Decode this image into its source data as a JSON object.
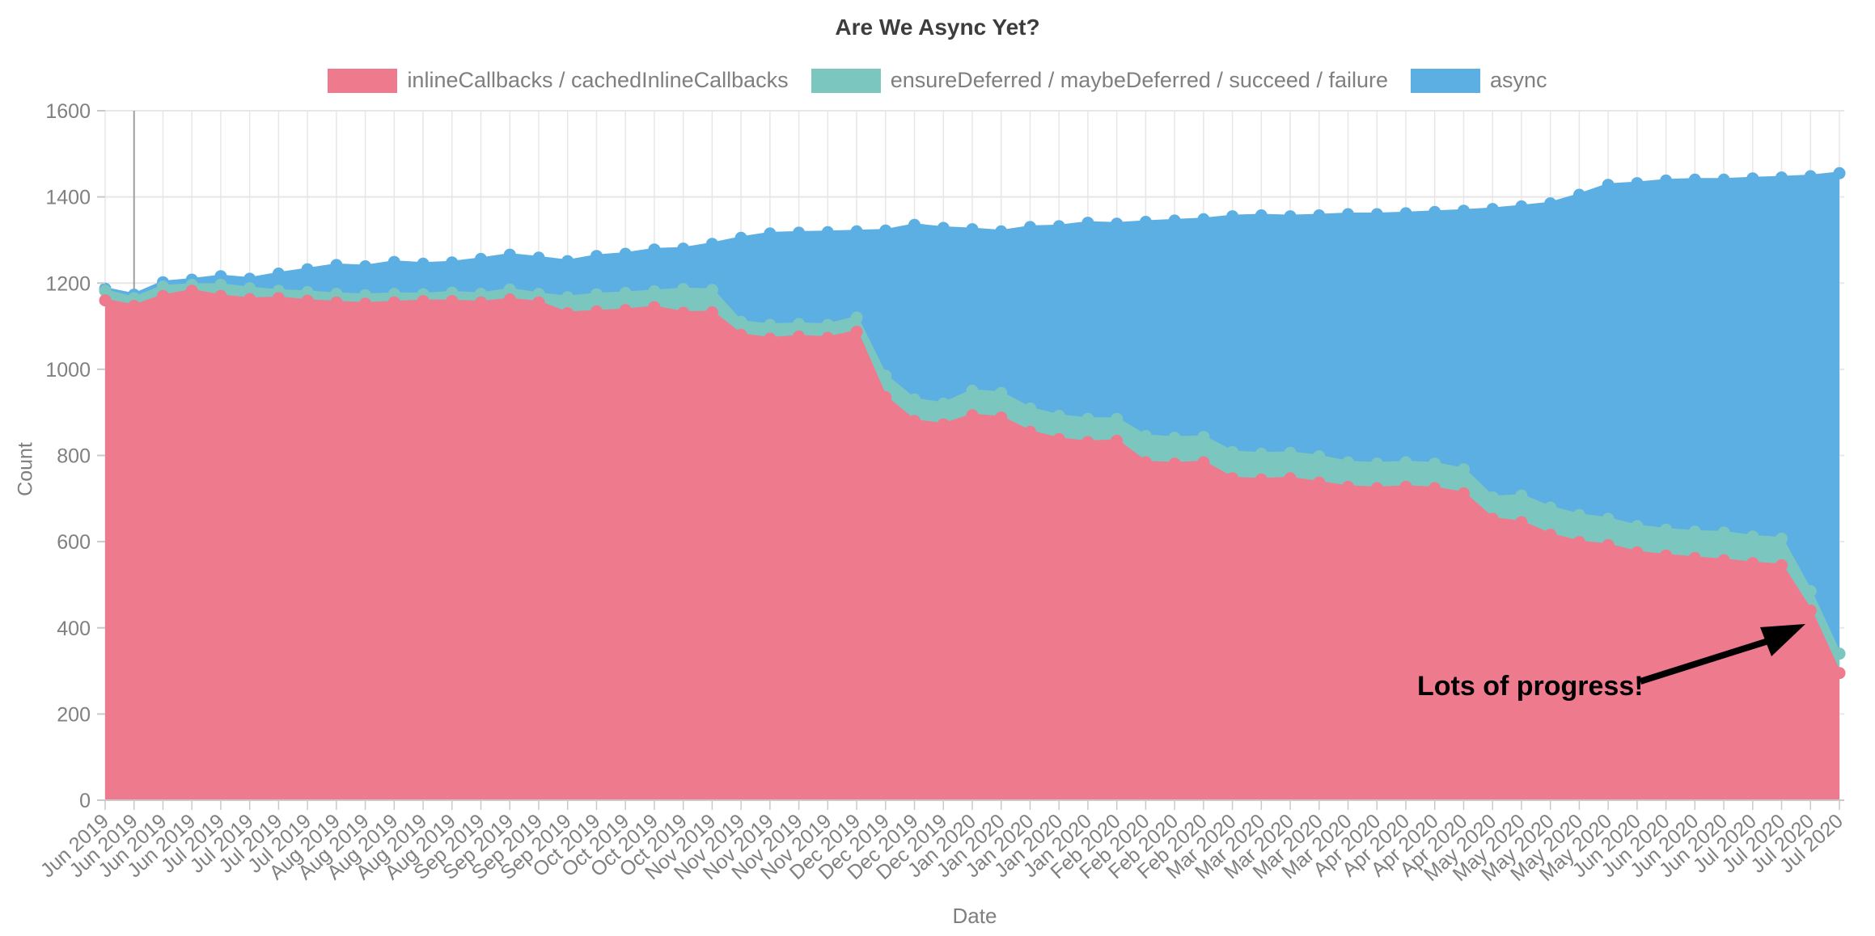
{
  "title": "Are We Async Yet?",
  "axes": {
    "x_title": "Date",
    "y_title": "Count",
    "y_ticks": [
      0,
      200,
      400,
      600,
      800,
      1000,
      1200,
      1400,
      1600
    ]
  },
  "annotation": {
    "text": "Lots of progress!"
  },
  "colors": {
    "pink": "#EE7A8E",
    "teal": "#7BC6BF",
    "blue": "#5CAFE2",
    "grid": "#e7e7e7",
    "grid_dark": "#9e9e9e",
    "axis_line": "#c9c9c9",
    "tick_text": "#808080"
  },
  "chart_data": {
    "type": "area",
    "stacked": true,
    "title": "Are We Async Yet?",
    "xlabel": "Date",
    "ylabel": "Count",
    "ylim": [
      0,
      1600
    ],
    "legend_position": "top-center",
    "grid": true,
    "categories": [
      "Jun 2019",
      "Jun 2019",
      "Jun 2019",
      "Jun 2019",
      "Jul 2019",
      "Jul 2019",
      "Jul 2019",
      "Jul 2019",
      "Aug 2019",
      "Aug 2019",
      "Aug 2019",
      "Aug 2019",
      "Aug 2019",
      "Sep 2019",
      "Sep 2019",
      "Sep 2019",
      "Sep 2019",
      "Oct 2019",
      "Oct 2019",
      "Oct 2019",
      "Oct 2019",
      "Nov 2019",
      "Nov 2019",
      "Nov 2019",
      "Nov 2019",
      "Nov 2019",
      "Dec 2019",
      "Dec 2019",
      "Dec 2019",
      "Dec 2019",
      "Jan 2020",
      "Jan 2020",
      "Jan 2020",
      "Jan 2020",
      "Jan 2020",
      "Feb 2020",
      "Feb 2020",
      "Feb 2020",
      "Feb 2020",
      "Mar 2020",
      "Mar 2020",
      "Mar 2020",
      "Mar 2020",
      "Mar 2020",
      "Apr 2020",
      "Apr 2020",
      "Apr 2020",
      "Apr 2020",
      "May 2020",
      "May 2020",
      "May 2020",
      "May 2020",
      "May 2020",
      "Jun 2020",
      "Jun 2020",
      "Jun 2020",
      "Jun 2020",
      "Jul 2020",
      "Jul 2020",
      "Jul 2020",
      "Jul 2020"
    ],
    "series": [
      {
        "name": "inlineCallbacks / cachedInlineCallbacks",
        "color_key": "pink",
        "values": [
          1160,
          1147,
          1170,
          1182,
          1170,
          1163,
          1165,
          1159,
          1155,
          1152,
          1155,
          1158,
          1158,
          1155,
          1162,
          1155,
          1130,
          1134,
          1137,
          1144,
          1131,
          1132,
          1080,
          1071,
          1076,
          1073,
          1087,
          935,
          880,
          872,
          893,
          888,
          855,
          838,
          831,
          834,
          784,
          781,
          784,
          747,
          744,
          747,
          737,
          727,
          724,
          727,
          724,
          712,
          653,
          645,
          616,
          599,
          592,
          575,
          568,
          562,
          557,
          550,
          545,
          440,
          295
        ]
      },
      {
        "name": "ensureDeferred / maybeDeferred / succeed / failure",
        "color_key": "teal",
        "values": [
          22,
          18,
          22,
          14,
          26,
          25,
          17,
          20,
          20,
          20,
          20,
          16,
          20,
          20,
          23,
          20,
          37,
          40,
          40,
          37,
          55,
          52,
          30,
          32,
          29,
          30,
          33,
          50,
          50,
          48,
          57,
          57,
          54,
          54,
          54,
          51,
          61,
          60,
          59,
          61,
          60,
          59,
          61,
          57,
          57,
          57,
          57,
          56,
          50,
          62,
          63,
          63,
          61,
          61,
          60,
          61,
          64,
          62,
          62,
          45,
          45
        ]
      },
      {
        "name": "async",
        "color_key": "blue",
        "values": [
          5,
          8,
          10,
          12,
          20,
          22,
          40,
          53,
          67,
          67,
          74,
          71,
          70,
          81,
          81,
          84,
          84,
          89,
          91,
          97,
          94,
          107,
          195,
          212,
          212,
          215,
          200,
          337,
          405,
          408,
          375,
          375,
          421,
          440,
          455,
          453,
          497,
          504,
          505,
          547,
          553,
          549,
          559,
          576,
          579,
          578,
          584,
          600,
          669,
          671,
          706,
          743,
          775,
          796,
          810,
          817,
          819,
          831,
          838,
          963,
          1115
        ]
      }
    ]
  }
}
